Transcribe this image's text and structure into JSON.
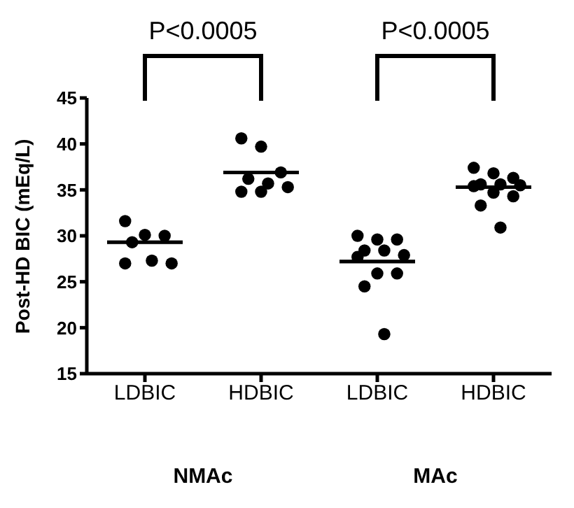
{
  "chart_data": [
    {
      "type": "scatter",
      "ylabel": "Post-HD BIC (mEq/L)",
      "xlabel": "NMAc",
      "categories": [
        "LDBIC",
        "HDBIC"
      ],
      "ylim": [
        15,
        45
      ],
      "yticks": [
        15,
        20,
        25,
        30,
        35,
        40,
        45
      ],
      "marker": "circle",
      "grid": false,
      "legend": false,
      "series": [
        {
          "color": "#000000",
          "x": [
            "LDBIC",
            "LDBIC",
            "LDBIC",
            "LDBIC",
            "LDBIC",
            "LDBIC",
            "LDBIC"
          ],
          "values": [
            31.6,
            30.1,
            30.0,
            29.3,
            27.3,
            27.0,
            27.0
          ]
        },
        {
          "color": "#000000",
          "x": [
            "HDBIC",
            "HDBIC",
            "HDBIC",
            "HDBIC",
            "HDBIC",
            "HDBIC",
            "HDBIC",
            "HDBIC"
          ],
          "values": [
            40.6,
            39.7,
            36.9,
            36.2,
            35.7,
            35.3,
            34.8,
            34.8
          ]
        },
        {
          "type": "box",
          "color": "#000000",
          "boxes": [
            {
              "low": 29.3,
              "q1": 29.3,
              "median": 29.3,
              "q3": 29.3,
              "high": 29.3
            },
            {
              "low": 36.9,
              "q1": 36.9,
              "median": 36.9,
              "q3": 36.9,
              "high": 36.9
            }
          ]
        }
      ],
      "annotations": [
        "P<0.0005"
      ]
    },
    {
      "type": "scatter",
      "xlabel": "MAc",
      "categories": [
        "LDBIC",
        "HDBIC"
      ],
      "ylim": [
        15,
        45
      ],
      "yticks": [
        15,
        20,
        25,
        30,
        35,
        40,
        45
      ],
      "tick_labels": "x",
      "marker": "circle",
      "grid": false,
      "legend": false,
      "series": [
        {
          "color": "#000000",
          "x": [
            "LDBIC",
            "LDBIC",
            "LDBIC",
            "LDBIC",
            "LDBIC",
            "LDBIC",
            "LDBIC",
            "LDBIC",
            "LDBIC",
            "LDBIC",
            "LDBIC"
          ],
          "values": [
            30.0,
            29.6,
            29.6,
            28.4,
            28.4,
            27.9,
            27.7,
            25.9,
            25.9,
            24.5,
            19.3
          ]
        },
        {
          "color": "#000000",
          "x": [
            "HDBIC",
            "HDBIC",
            "HDBIC",
            "HDBIC",
            "HDBIC",
            "HDBIC",
            "HDBIC",
            "HDBIC",
            "HDBIC",
            "HDBIC",
            "HDBIC"
          ],
          "values": [
            37.4,
            36.8,
            36.3,
            35.6,
            35.6,
            35.5,
            35.4,
            34.7,
            34.3,
            33.3,
            30.9
          ]
        },
        {
          "type": "box",
          "color": "#000000",
          "boxes": [
            {
              "low": 27.2,
              "q1": 27.2,
              "median": 27.2,
              "q3": 27.2,
              "high": 27.2
            },
            {
              "low": 35.3,
              "q1": 35.3,
              "median": 35.3,
              "q3": 35.3,
              "high": 35.3
            }
          ]
        }
      ],
      "annotations": [
        "P<0.0005"
      ]
    }
  ]
}
